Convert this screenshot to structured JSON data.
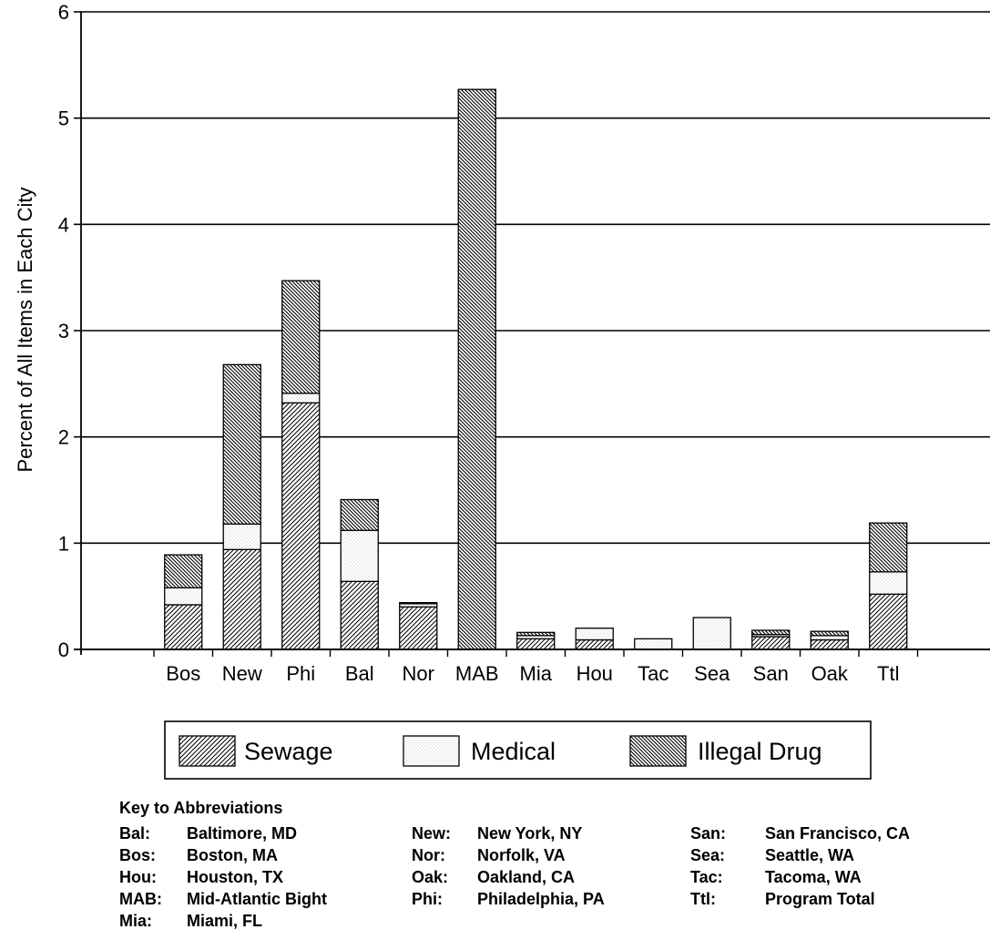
{
  "chart_data": {
    "type": "bar",
    "stacked": true,
    "ylabel": "Percent of All Items in Each City",
    "ylim": [
      0,
      6
    ],
    "yticks": [
      0,
      1,
      2,
      3,
      4,
      5,
      6
    ],
    "grid": true,
    "categories": [
      "Bos",
      "New",
      "Phi",
      "Bal",
      "Nor",
      "MAB",
      "Mia",
      "Hou",
      "Tac",
      "Sea",
      "San",
      "Oak",
      "Ttl"
    ],
    "series": [
      {
        "name": "Sewage",
        "pattern": "forward-hatch",
        "values": [
          0.42,
          0.94,
          2.32,
          0.64,
          0.4,
          0.0,
          0.1,
          0.09,
          0.0,
          0.0,
          0.12,
          0.09,
          0.52
        ]
      },
      {
        "name": "Medical",
        "pattern": "stipple",
        "values": [
          0.16,
          0.24,
          0.09,
          0.48,
          0.03,
          0.0,
          0.03,
          0.11,
          0.1,
          0.3,
          0.02,
          0.04,
          0.21
        ]
      },
      {
        "name": "Illegal Drug",
        "pattern": "back-hatch",
        "values": [
          0.31,
          1.5,
          1.06,
          0.29,
          0.01,
          5.27,
          0.03,
          0.0,
          0.0,
          0.0,
          0.04,
          0.04,
          0.46
        ]
      }
    ],
    "legend_position": "bottom"
  },
  "key": {
    "title": "Key to Abbreviations",
    "columns": [
      [
        {
          "abbr": "Bal:",
          "name": "Baltimore, MD"
        },
        {
          "abbr": "Bos:",
          "name": "Boston, MA"
        },
        {
          "abbr": "Hou:",
          "name": "Houston, TX"
        },
        {
          "abbr": "MAB:",
          "name": "Mid-Atlantic Bight"
        },
        {
          "abbr": "Mia:",
          "name": "Miami, FL"
        }
      ],
      [
        {
          "abbr": "New:",
          "name": "New York, NY"
        },
        {
          "abbr": "Nor:",
          "name": "Norfolk, VA"
        },
        {
          "abbr": "Oak:",
          "name": "Oakland, CA"
        },
        {
          "abbr": "Phi:",
          "name": "Philadelphia, PA"
        }
      ],
      [
        {
          "abbr": "San:",
          "name": "San Francisco, CA"
        },
        {
          "abbr": "Sea:",
          "name": "Seattle, WA"
        },
        {
          "abbr": "Tac:",
          "name": "Tacoma, WA"
        },
        {
          "abbr": "Ttl:",
          "name": "Program Total"
        }
      ]
    ]
  }
}
